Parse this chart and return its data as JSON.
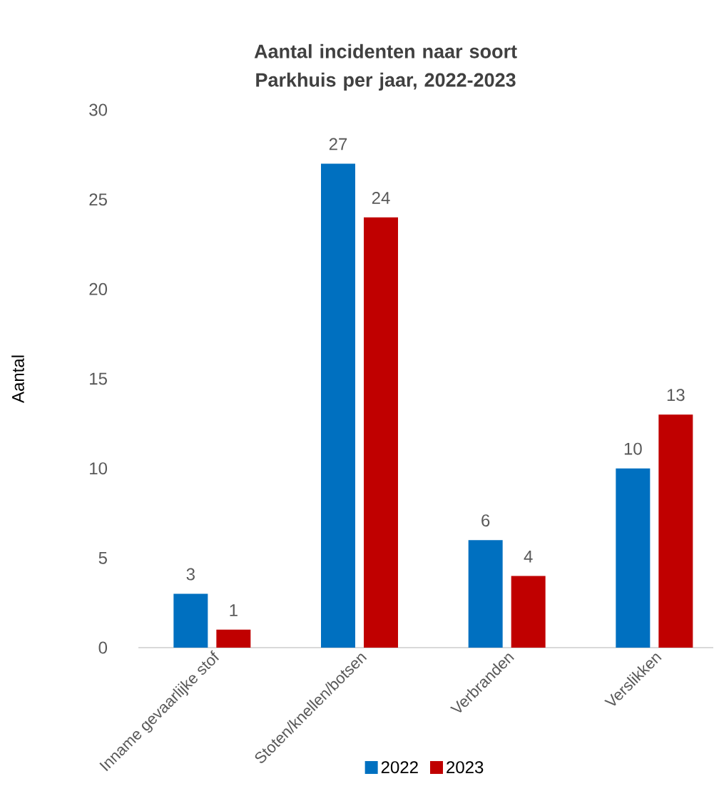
{
  "chart_data": {
    "type": "bar",
    "title": "Aantal incidenten naar soort Parkhuis per jaar, 2022-2023",
    "ylabel": "Aantal",
    "categories": [
      "Inname gevaarlijke stof",
      "Stoten/knellen/botsen",
      "Verbranden",
      "Verslikken"
    ],
    "series": [
      {
        "name": "2022",
        "color": "#0070c0",
        "values": [
          3,
          27,
          6,
          10
        ]
      },
      {
        "name": "2023",
        "color": "#c00000",
        "values": [
          1,
          24,
          4,
          13
        ]
      }
    ],
    "ylim": [
      0,
      30
    ],
    "yticks": [
      0,
      5,
      10,
      15,
      20,
      25,
      30
    ],
    "data_labels": true,
    "legend": "bottom"
  }
}
